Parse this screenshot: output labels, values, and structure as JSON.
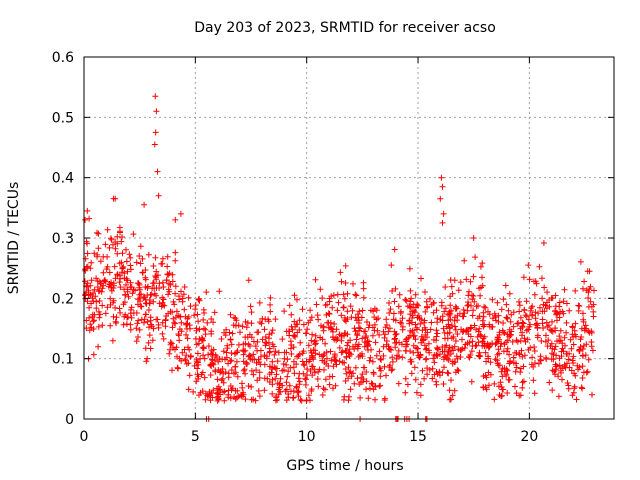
{
  "chart_data": {
    "type": "scatter",
    "title": "Day 203 of 2023, SRMTID for receiver acso",
    "xlabel": "GPS time / hours",
    "ylabel": "SRMTID / TECUs",
    "xlim": [
      0,
      23.8
    ],
    "ylim": [
      0,
      0.6
    ],
    "grid": true,
    "marker": "+",
    "color": "#ff0000",
    "x_ticks": [
      0,
      5,
      10,
      15,
      20
    ],
    "x_tick_labels": [
      "0",
      "5",
      "10",
      "15",
      "20"
    ],
    "y_ticks": [
      0,
      0.1,
      0.2,
      0.3,
      0.4,
      0.5,
      0.6
    ],
    "y_tick_labels": [
      "0",
      "0.1",
      "0.2",
      "0.3",
      "0.4",
      "0.5",
      "0.6"
    ],
    "trend": [
      [
        0.0,
        0.24
      ],
      [
        0.5,
        0.21
      ],
      [
        1.0,
        0.22
      ],
      [
        1.5,
        0.24
      ],
      [
        2.0,
        0.22
      ],
      [
        2.5,
        0.2
      ],
      [
        3.0,
        0.19
      ],
      [
        3.5,
        0.21
      ],
      [
        4.0,
        0.18
      ],
      [
        4.5,
        0.15
      ],
      [
        5.0,
        0.13
      ],
      [
        5.5,
        0.1
      ],
      [
        6.0,
        0.085
      ],
      [
        6.5,
        0.075
      ],
      [
        7.0,
        0.08
      ],
      [
        7.5,
        0.1
      ],
      [
        8.0,
        0.11
      ],
      [
        8.5,
        0.09
      ],
      [
        9.0,
        0.09
      ],
      [
        9.5,
        0.1
      ],
      [
        10.0,
        0.1
      ],
      [
        10.5,
        0.11
      ],
      [
        11.0,
        0.13
      ],
      [
        11.5,
        0.14
      ],
      [
        12.0,
        0.13
      ],
      [
        12.5,
        0.12
      ],
      [
        13.0,
        0.11
      ],
      [
        13.5,
        0.13
      ],
      [
        14.0,
        0.15
      ],
      [
        14.5,
        0.14
      ],
      [
        15.0,
        0.14
      ],
      [
        15.5,
        0.14
      ],
      [
        16.0,
        0.12
      ],
      [
        16.5,
        0.13
      ],
      [
        17.0,
        0.16
      ],
      [
        17.5,
        0.17
      ],
      [
        18.0,
        0.14
      ],
      [
        18.5,
        0.12
      ],
      [
        19.0,
        0.11
      ],
      [
        19.5,
        0.12
      ],
      [
        20.0,
        0.15
      ],
      [
        20.5,
        0.16
      ],
      [
        21.0,
        0.15
      ],
      [
        21.5,
        0.12
      ],
      [
        22.0,
        0.11
      ],
      [
        22.5,
        0.14
      ],
      [
        22.9,
        0.15
      ]
    ],
    "highlights": [
      {
        "x": 3.2,
        "y": 0.535
      },
      {
        "x": 3.25,
        "y": 0.51
      },
      {
        "x": 3.22,
        "y": 0.475
      },
      {
        "x": 3.18,
        "y": 0.455
      },
      {
        "x": 3.3,
        "y": 0.41
      },
      {
        "x": 3.35,
        "y": 0.37
      },
      {
        "x": 1.4,
        "y": 0.365
      },
      {
        "x": 2.7,
        "y": 0.355
      },
      {
        "x": 0.05,
        "y": 0.33
      },
      {
        "x": 0.15,
        "y": 0.345
      },
      {
        "x": 4.35,
        "y": 0.34
      },
      {
        "x": 4.1,
        "y": 0.33
      },
      {
        "x": 16.05,
        "y": 0.4
      },
      {
        "x": 16.1,
        "y": 0.385
      },
      {
        "x": 16.0,
        "y": 0.365
      },
      {
        "x": 16.15,
        "y": 0.34
      },
      {
        "x": 16.1,
        "y": 0.325
      },
      {
        "x": 17.5,
        "y": 0.3
      },
      {
        "x": 7.4,
        "y": 0.23
      },
      {
        "x": 13.8,
        "y": 0.255
      },
      {
        "x": 19.95,
        "y": 0.255
      },
      {
        "x": 22.7,
        "y": 0.245
      },
      {
        "x": 12.4,
        "y": 0.035
      },
      {
        "x": 14.9,
        "y": 0.065
      },
      {
        "x": 0.2,
        "y": 0.1
      },
      {
        "x": 4.9,
        "y": 0.045
      },
      {
        "x": 6.0,
        "y": 0.03
      },
      {
        "x": 8.8,
        "y": 0.045
      },
      {
        "x": 11.3,
        "y": 0.055
      }
    ],
    "zero_points": [
      5.5,
      5.6,
      12.4,
      14.0,
      14.05,
      14.1,
      14.4,
      14.5,
      14.6,
      15.35,
      15.4
    ],
    "scatter_count": 1800,
    "scatter_spread": 0.045
  }
}
